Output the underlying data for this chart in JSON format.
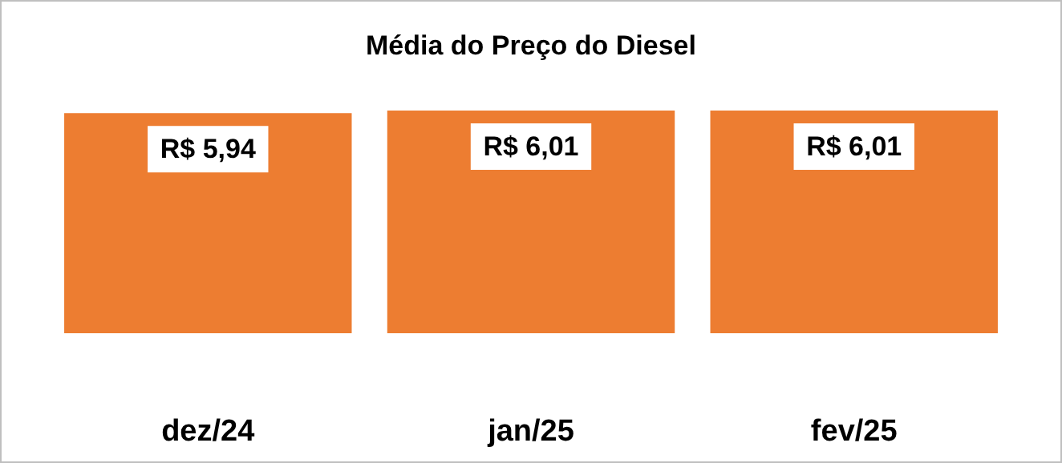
{
  "chart_data": {
    "type": "bar",
    "title": "Média do Preço do Diesel",
    "categories": [
      "dez/24",
      "jan/25",
      "fev/25"
    ],
    "values": [
      5.94,
      6.01,
      6.01
    ],
    "value_labels": [
      "R$ 5,94",
      "R$ 6,01",
      "R$ 6,01"
    ],
    "color": "#ed7d31",
    "tick_labels": "x"
  }
}
